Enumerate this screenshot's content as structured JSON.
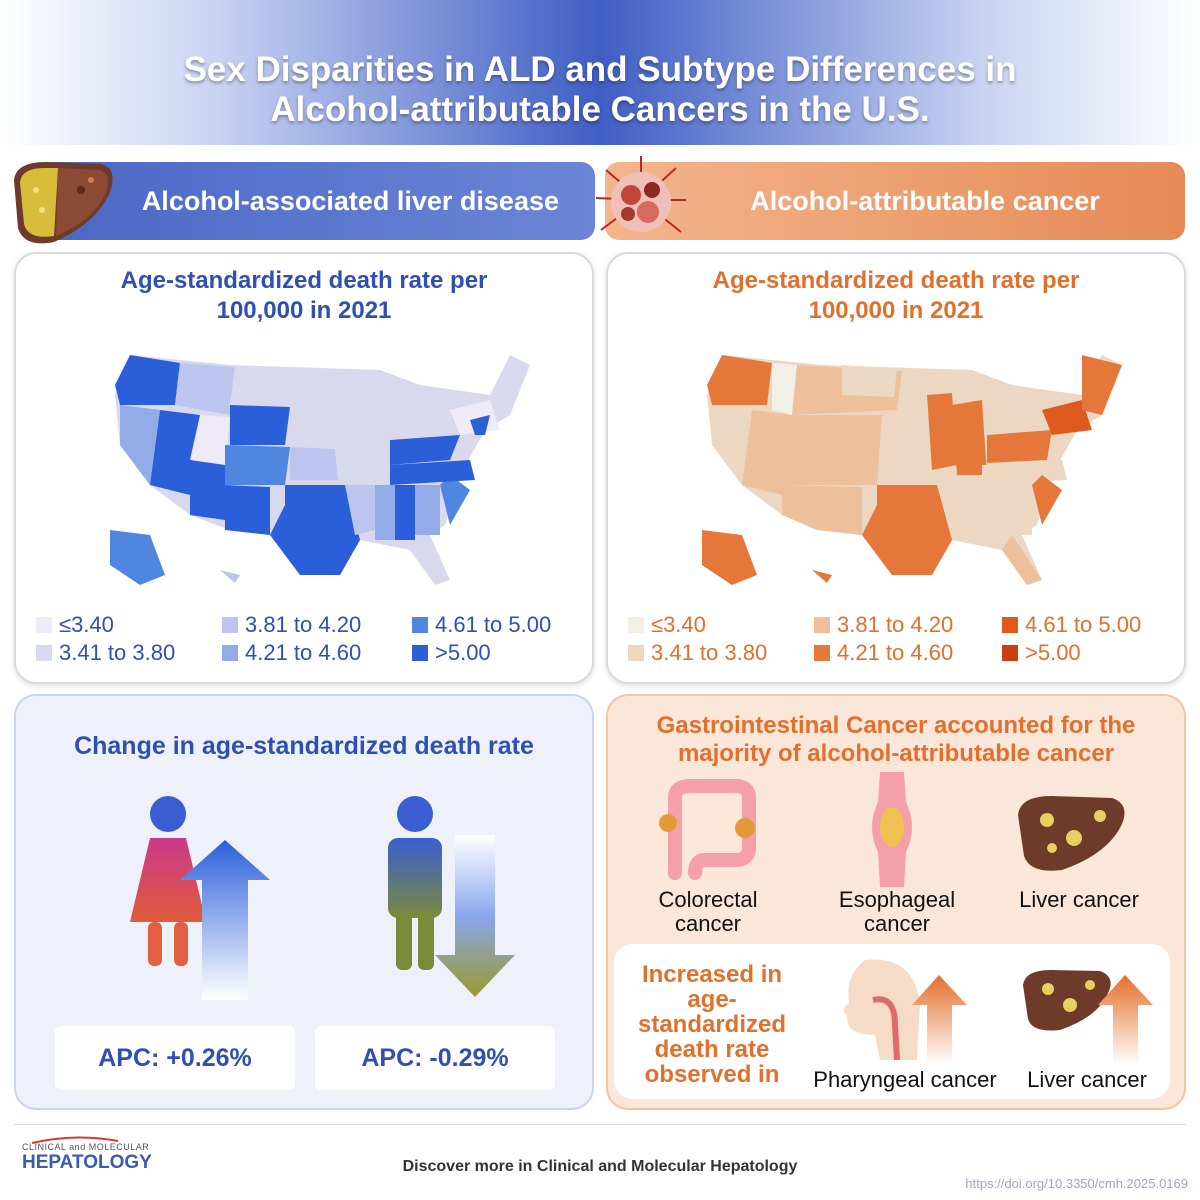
{
  "header": {
    "title_line1": "Sex Disparities in ALD and Subtype Differences in",
    "title_line2": "Alcohol-attributable Cancers in the U.S."
  },
  "left": {
    "banner": "Alcohol-associated liver disease",
    "map_title_line1": "Age-standardized death rate per",
    "map_title_line2": "100,000 in 2021",
    "legend": [
      {
        "label": "≤3.40",
        "color": "#efeaf7"
      },
      {
        "label": "3.41 to 3.80",
        "color": "#d9d9ee"
      },
      {
        "label": "3.81 to 4.20",
        "color": "#bcc5ee"
      },
      {
        "label": "4.21 to 4.60",
        "color": "#93abe6"
      },
      {
        "label": "4.61 to 5.00",
        "color": "#4f86e0"
      },
      {
        "label": ">5.00",
        "color": "#2b5fd9"
      }
    ]
  },
  "right": {
    "banner": "Alcohol-attributable cancer",
    "map_title_line1": "Age-standardized death rate per",
    "map_title_line2": "100,000 in 2021",
    "legend": [
      {
        "label": "≤3.40",
        "color": "#f1efe6"
      },
      {
        "label": "3.41 to 3.80",
        "color": "#ecd8c2"
      },
      {
        "label": "3.81 to 4.20",
        "color": "#eebf9b"
      },
      {
        "label": "4.21 to 4.60",
        "color": "#e6773a"
      },
      {
        "label": "4.61 to 5.00",
        "color": "#e05a20"
      },
      {
        "label": ">5.00",
        "color": "#c9400f"
      }
    ]
  },
  "change": {
    "title": "Change in age-standardized death rate",
    "female_apc": "APC: +0.26%",
    "male_apc": "APC: -0.29%"
  },
  "gi": {
    "title_line1": "Gastrointestinal Cancer accounted for the",
    "title_line2": "majority of alcohol-attributable cancer",
    "organs": [
      {
        "line1": "Colorectal",
        "line2": "cancer"
      },
      {
        "line1": "Esophageal",
        "line2": "cancer"
      },
      {
        "line1": "Liver cancer",
        "line2": ""
      }
    ],
    "increase_lines": [
      "Increased in",
      "age-",
      "standardized",
      "death rate",
      "observed in"
    ],
    "increase_items": [
      "Pharyngeal cancer",
      "Liver cancer"
    ]
  },
  "footer": {
    "logo_top": "CLINICAL and MOLECULAR",
    "logo": "HEPATOLOGY",
    "text": "Discover more in Clinical and Molecular Hepatology",
    "doi": "https://doi.org/10.3350/cmh.2025.0169"
  },
  "colors": {
    "blue": "#2f4fb3",
    "orange": "#e36f2c"
  }
}
